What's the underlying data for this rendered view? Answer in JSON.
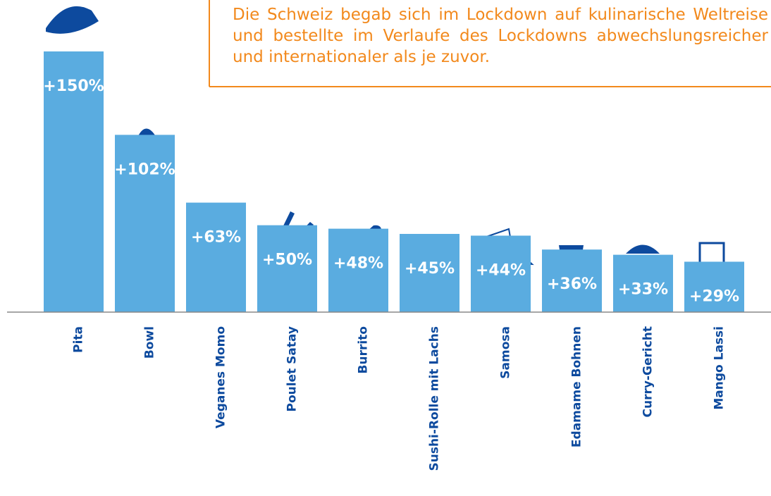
{
  "chart_data": {
    "type": "bar",
    "annotation": "Die Schweiz begab sich im Lockdown auf kulinarische Weltreise und bestellte im Verlaufe des Lockdowns abwechslungsreicher und internationaler als je zuvor.",
    "categories": [
      "Pita",
      "Bowl",
      "Veganes Momo",
      "Poulet Satay",
      "Burrito",
      "Sushi-Rolle mit Lachs",
      "Samosa",
      "Edamame Bohnen",
      "Curry-Gericht",
      "Mango Lassi"
    ],
    "values": [
      150,
      102,
      63,
      50,
      48,
      45,
      44,
      36,
      33,
      29
    ],
    "value_labels": [
      "+150%",
      "+102%",
      "+63%",
      "+50%",
      "+48%",
      "+45%",
      "+44%",
      "+36%",
      "+33%",
      "+29%"
    ],
    "color": "#5aace0"
  }
}
